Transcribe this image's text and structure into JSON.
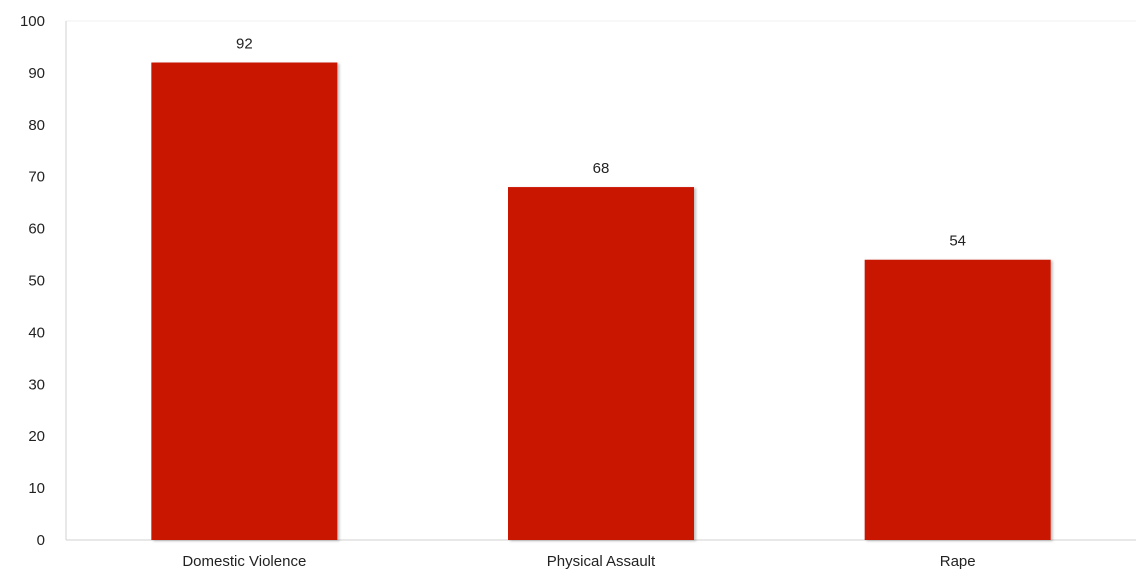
{
  "chart_data": {
    "type": "bar",
    "title": "",
    "xlabel": "",
    "ylabel": "",
    "categories": [
      "Domestic Violence",
      "Physical Assault",
      "Rape"
    ],
    "values": [
      92,
      68,
      54
    ],
    "ylim": [
      0,
      100
    ],
    "yticks": [
      0,
      10,
      20,
      30,
      40,
      50,
      60,
      70,
      80,
      90,
      100
    ],
    "data_labels": true,
    "grid": false,
    "legend": "none",
    "bar_color": "#C81400"
  }
}
